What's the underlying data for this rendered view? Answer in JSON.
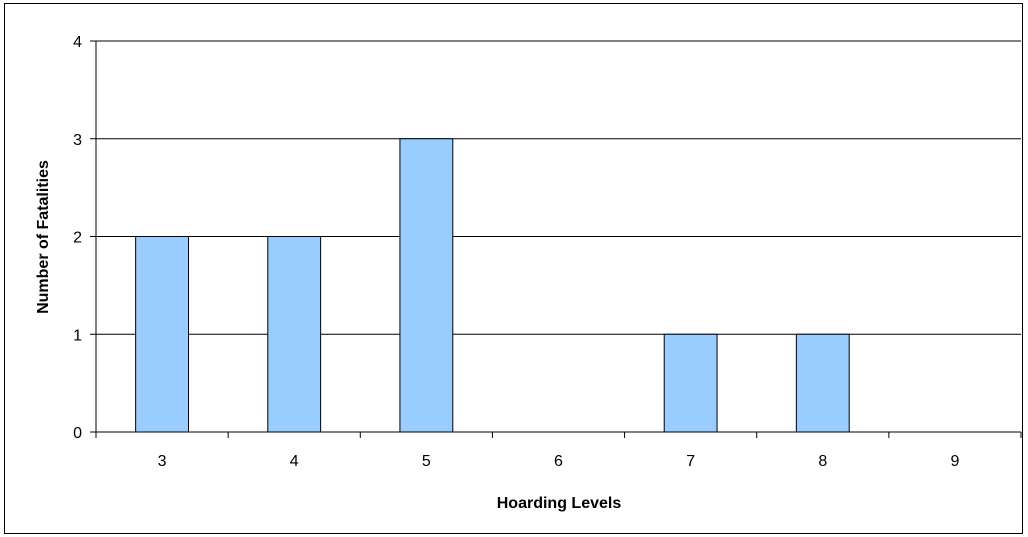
{
  "chart_data": {
    "type": "bar",
    "title": "",
    "xlabel": "Hoarding Levels",
    "ylabel": "Number of Fatalities",
    "categories": [
      "3",
      "4",
      "5",
      "6",
      "7",
      "8",
      "9"
    ],
    "values": [
      2,
      2,
      3,
      0,
      1,
      1,
      0
    ],
    "ylim": [
      0,
      4
    ],
    "yticks": [
      "0",
      "1",
      "2",
      "3",
      "4"
    ],
    "grid": true,
    "legend": "none",
    "colors": {
      "bar": "#99ccff",
      "bar_border": "#000000",
      "grid": "#000000",
      "background": "#ffffff"
    }
  }
}
